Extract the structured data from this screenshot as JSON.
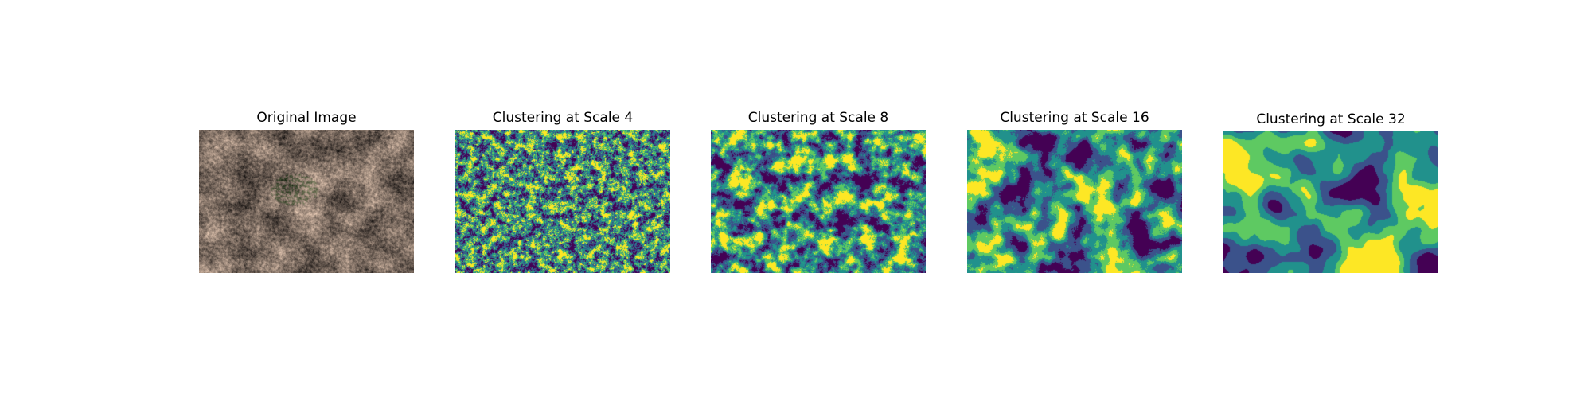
{
  "panels": [
    {
      "title": "Original Image",
      "kind": "photo"
    },
    {
      "title": "Clustering at Scale 4",
      "kind": "clusters",
      "scale": 4
    },
    {
      "title": "Clustering at Scale 8",
      "kind": "clusters",
      "scale": 8
    },
    {
      "title": "Clustering at Scale 16",
      "kind": "clusters",
      "scale": 16
    },
    {
      "title": "Clustering at Scale 32",
      "kind": "clusters",
      "scale": 32
    }
  ],
  "colormap": [
    "#440154",
    "#3b528b",
    "#21918c",
    "#5ec962",
    "#fde725"
  ]
}
